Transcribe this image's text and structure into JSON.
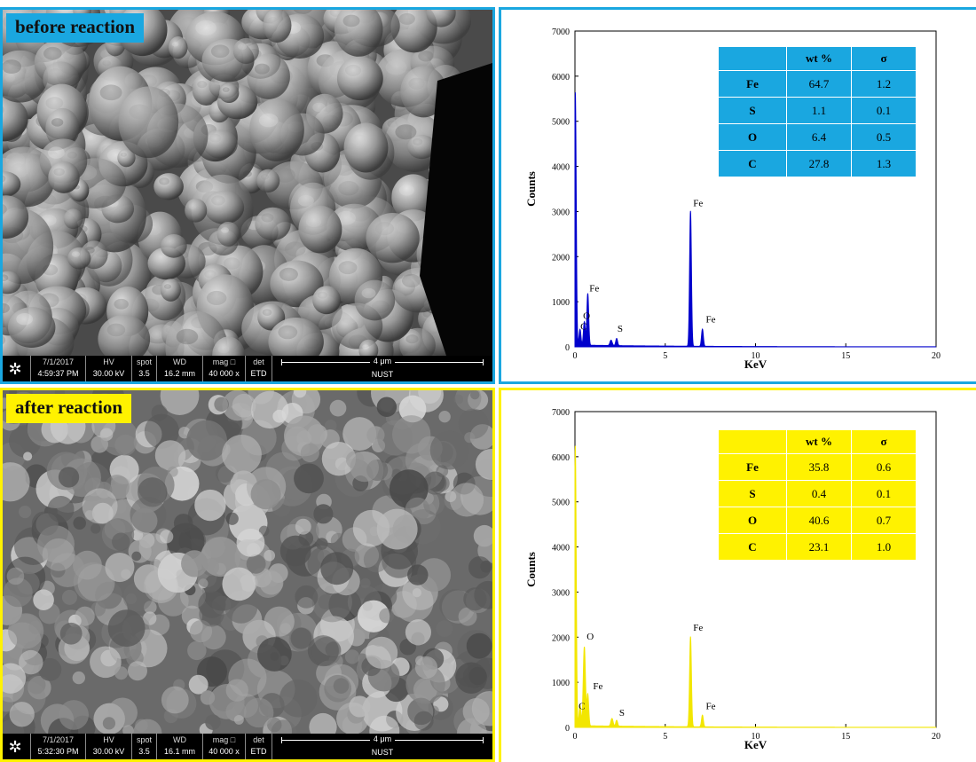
{
  "panels": [
    {
      "label": "before reaction",
      "label_bg": "#1aa7e0",
      "border_color": "#1aa7e0",
      "info_bar": {
        "date": "7/1/2017",
        "time": "4:59:37 PM",
        "hv_label": "HV",
        "hv": "30.00 kV",
        "spot_label": "spot",
        "spot": "3.5",
        "wd_label": "WD",
        "wd": "16.2 mm",
        "mag_label": "mag □",
        "mag": "40 000 x",
        "det_label": "det",
        "det": "ETD",
        "scale": "4 μm",
        "org": "NUST"
      },
      "table": {
        "header_bg": "#1aa7e0",
        "columns": [
          "",
          "wt %",
          "σ"
        ],
        "rows": [
          [
            "Fe",
            "64.7",
            "1.2"
          ],
          [
            "S",
            "1.1",
            "0.1"
          ],
          [
            "O",
            "6.4",
            "0.5"
          ],
          [
            "C",
            "27.8",
            "1.3"
          ]
        ]
      }
    },
    {
      "label": "after reaction",
      "label_bg": "#fff200",
      "border_color": "#fff200",
      "info_bar": {
        "date": "7/1/2017",
        "time": "5:32:30 PM",
        "hv_label": "HV",
        "hv": "30.00 kV",
        "spot_label": "spot",
        "spot": "3.5",
        "wd_label": "WD",
        "wd": "16.1 mm",
        "mag_label": "mag □",
        "mag": "40 000 x",
        "det_label": "det",
        "det": "ETD",
        "scale": "4 μm",
        "org": "NUST"
      },
      "table": {
        "header_bg": "#fff200",
        "columns": [
          "",
          "wt %",
          "σ"
        ],
        "rows": [
          [
            "Fe",
            "35.8",
            "0.6"
          ],
          [
            "S",
            "0.4",
            "0.1"
          ],
          [
            "O",
            "40.6",
            "0.7"
          ],
          [
            "C",
            "23.1",
            "1.0"
          ]
        ]
      }
    }
  ],
  "chart_data": [
    {
      "type": "line",
      "xlabel": "KeV",
      "ylabel": "Counts",
      "xlim": [
        0,
        20
      ],
      "ylim": [
        0,
        7000
      ],
      "xticks": [
        0,
        5,
        10,
        15,
        20
      ],
      "yticks": [
        0,
        1000,
        2000,
        3000,
        4000,
        5000,
        6000,
        7000
      ],
      "color": "#0000cc",
      "fill": "#0000cc",
      "peaks": [
        {
          "x": 0.02,
          "y": 5600,
          "w": 0.05
        },
        {
          "x": 0.28,
          "y": 350,
          "w": 0.05
        },
        {
          "x": 0.52,
          "y": 520,
          "w": 0.05
        },
        {
          "x": 0.71,
          "y": 1150,
          "w": 0.05
        },
        {
          "x": 2.0,
          "y": 120,
          "w": 0.06
        },
        {
          "x": 2.31,
          "y": 160,
          "w": 0.05
        },
        {
          "x": 6.4,
          "y": 3000,
          "w": 0.05
        },
        {
          "x": 7.06,
          "y": 380,
          "w": 0.05
        }
      ],
      "annotations": [
        {
          "text": "Fe",
          "x": 0.8,
          "y": 1230
        },
        {
          "text": "O",
          "x": 0.45,
          "y": 620
        },
        {
          "text": "C",
          "x": 0.3,
          "y": 380
        },
        {
          "text": "S",
          "x": 2.35,
          "y": 330
        },
        {
          "text": "Fe",
          "x": 6.55,
          "y": 3120
        },
        {
          "text": "Fe",
          "x": 7.25,
          "y": 540
        }
      ]
    },
    {
      "type": "line",
      "xlabel": "KeV",
      "ylabel": "Counts",
      "xlim": [
        0,
        20
      ],
      "ylim": [
        0,
        7000
      ],
      "xticks": [
        0,
        5,
        10,
        15,
        20
      ],
      "yticks": [
        0,
        1000,
        2000,
        3000,
        4000,
        5000,
        6000,
        7000
      ],
      "color": "#f2e600",
      "fill": "#f2e600",
      "peaks": [
        {
          "x": 0.02,
          "y": 6200,
          "w": 0.05
        },
        {
          "x": 0.28,
          "y": 450,
          "w": 0.05
        },
        {
          "x": 0.52,
          "y": 1750,
          "w": 0.06
        },
        {
          "x": 0.71,
          "y": 700,
          "w": 0.05
        },
        {
          "x": 2.05,
          "y": 170,
          "w": 0.06
        },
        {
          "x": 2.31,
          "y": 130,
          "w": 0.05
        },
        {
          "x": 6.4,
          "y": 2000,
          "w": 0.05
        },
        {
          "x": 7.06,
          "y": 260,
          "w": 0.05
        }
      ],
      "annotations": [
        {
          "text": "O",
          "x": 0.65,
          "y": 1950
        },
        {
          "text": "Fe",
          "x": 1.0,
          "y": 850
        },
        {
          "text": "C",
          "x": 0.2,
          "y": 400
        },
        {
          "text": "S",
          "x": 2.45,
          "y": 260
        },
        {
          "text": "Fe",
          "x": 6.55,
          "y": 2140
        },
        {
          "text": "Fe",
          "x": 7.25,
          "y": 400
        }
      ]
    }
  ]
}
